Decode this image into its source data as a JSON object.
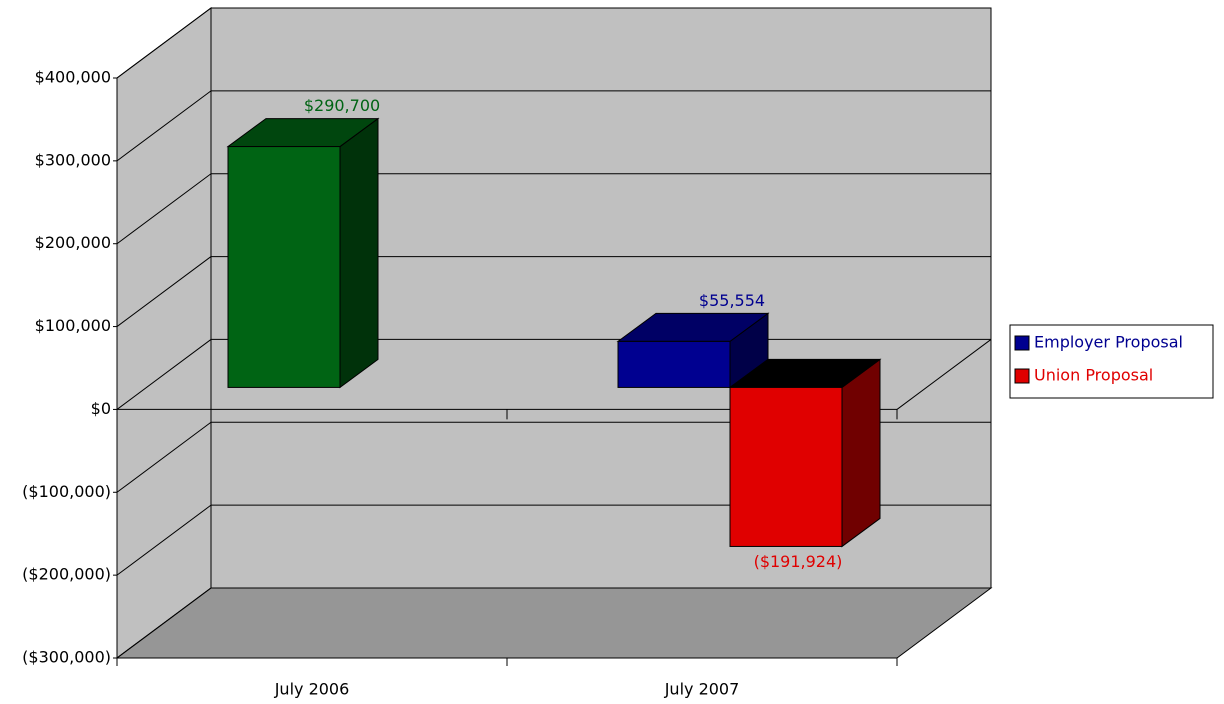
{
  "chart_data": {
    "type": "bar3d",
    "categories": [
      "July 2006",
      "July 2007"
    ],
    "series": [
      {
        "name": "Employer Proposal",
        "color": "#000090",
        "colors": [
          "#006414",
          "#000090"
        ],
        "values": [
          290700,
          55554
        ],
        "value_labels": [
          "$290,700",
          "$55,554"
        ]
      },
      {
        "name": "Union Proposal",
        "color": "#e00000",
        "colors": [
          "#e00000",
          "#e00000"
        ],
        "values": [
          null,
          -191924
        ],
        "value_labels": [
          null,
          "($191,924)"
        ]
      }
    ],
    "ylim": [
      -300000,
      400000
    ],
    "yticks": [
      {
        "value": -300000,
        "label": "($300,000)"
      },
      {
        "value": -200000,
        "label": "($200,000)"
      },
      {
        "value": -100000,
        "label": "($100,000)"
      },
      {
        "value": 0,
        "label": "$0"
      },
      {
        "value": 100000,
        "label": "$100,000"
      },
      {
        "value": 200000,
        "label": "$200,000"
      },
      {
        "value": 300000,
        "label": "$300,000"
      },
      {
        "value": 400000,
        "label": "$400,000"
      }
    ],
    "grid": true,
    "legend": "right"
  }
}
